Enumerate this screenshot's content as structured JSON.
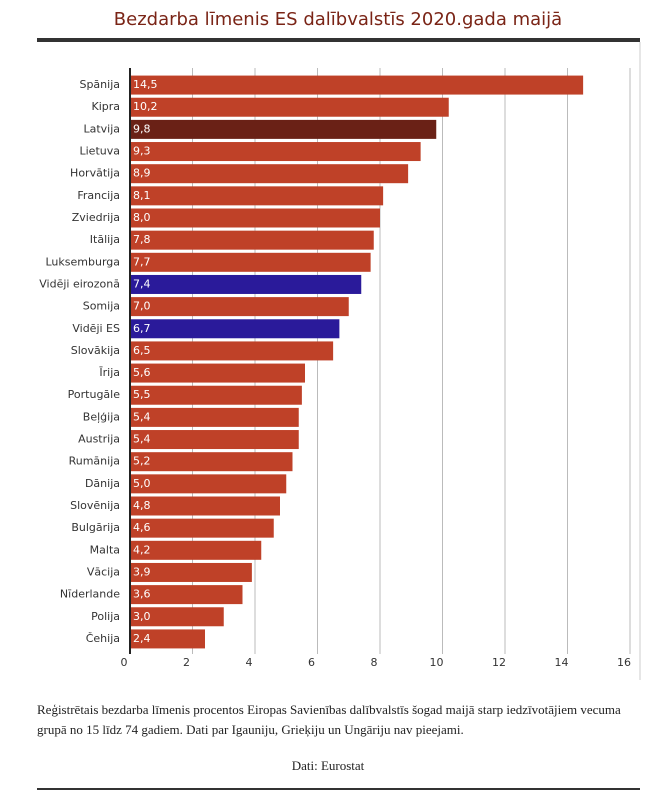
{
  "chart_data": {
    "type": "hbar",
    "title": "Bezdarba līmenis ES dalībvalstīs 2020.gada maijā",
    "categories": [
      "Spānija",
      "Kipra",
      "Latvija",
      "Lietuva",
      "Horvātija",
      "Francija",
      "Zviedrija",
      "Itālija",
      "Luksemburga",
      "Vidēji eirozonā",
      "Somija",
      "Vidēji ES",
      "Slovākija",
      "Īrija",
      "Portugāle",
      "Beļģija",
      "Austrija",
      "Rumānija",
      "Dānija",
      "Slovēnija",
      "Bulgārija",
      "Malta",
      "Vācija",
      "Nīderlande",
      "Polija",
      "Čehija"
    ],
    "values": [
      14.5,
      10.2,
      9.8,
      9.3,
      8.9,
      8.1,
      8.0,
      7.8,
      7.7,
      7.4,
      7.0,
      6.7,
      6.5,
      5.6,
      5.5,
      5.4,
      5.4,
      5.2,
      5.0,
      4.8,
      4.6,
      4.2,
      3.9,
      3.6,
      3.0,
      2.4
    ],
    "value_labels": [
      "14,5",
      "10,2",
      "9,8",
      "9,3",
      "8,9",
      "8,1",
      "8,0",
      "7,8",
      "7,7",
      "7,4",
      "7,0",
      "6,7",
      "6,5",
      "5,6",
      "5,5",
      "5,4",
      "5,4",
      "5,2",
      "5,0",
      "4,8",
      "4,6",
      "4,2",
      "3,9",
      "3,6",
      "3,0",
      "2,4"
    ],
    "colors": [
      "#bf4128",
      "#bf4128",
      "#6a2116",
      "#bf4128",
      "#bf4128",
      "#bf4128",
      "#bf4128",
      "#bf4128",
      "#bf4128",
      "#2a1a9a",
      "#bf4128",
      "#2a1a9a",
      "#bf4128",
      "#bf4128",
      "#bf4128",
      "#bf4128",
      "#bf4128",
      "#bf4128",
      "#bf4128",
      "#bf4128",
      "#bf4128",
      "#bf4128",
      "#bf4128",
      "#bf4128",
      "#bf4128",
      "#bf4128"
    ],
    "xlim": [
      0,
      16
    ],
    "xticks": [
      0,
      2,
      4,
      6,
      8,
      10,
      12,
      14,
      16
    ],
    "grid": true,
    "note": "Reģistrētais bezdarba līmenis procentos Eiropas Savienības dalībvalstīs šogad maijā starp iedzīvotājiem vecuma grupā no 15 līdz 74 gadiem. Dati par Igauniju, Grieķiju un Ungāriju nav pieejami.",
    "source": "Dati: Eurostat"
  }
}
